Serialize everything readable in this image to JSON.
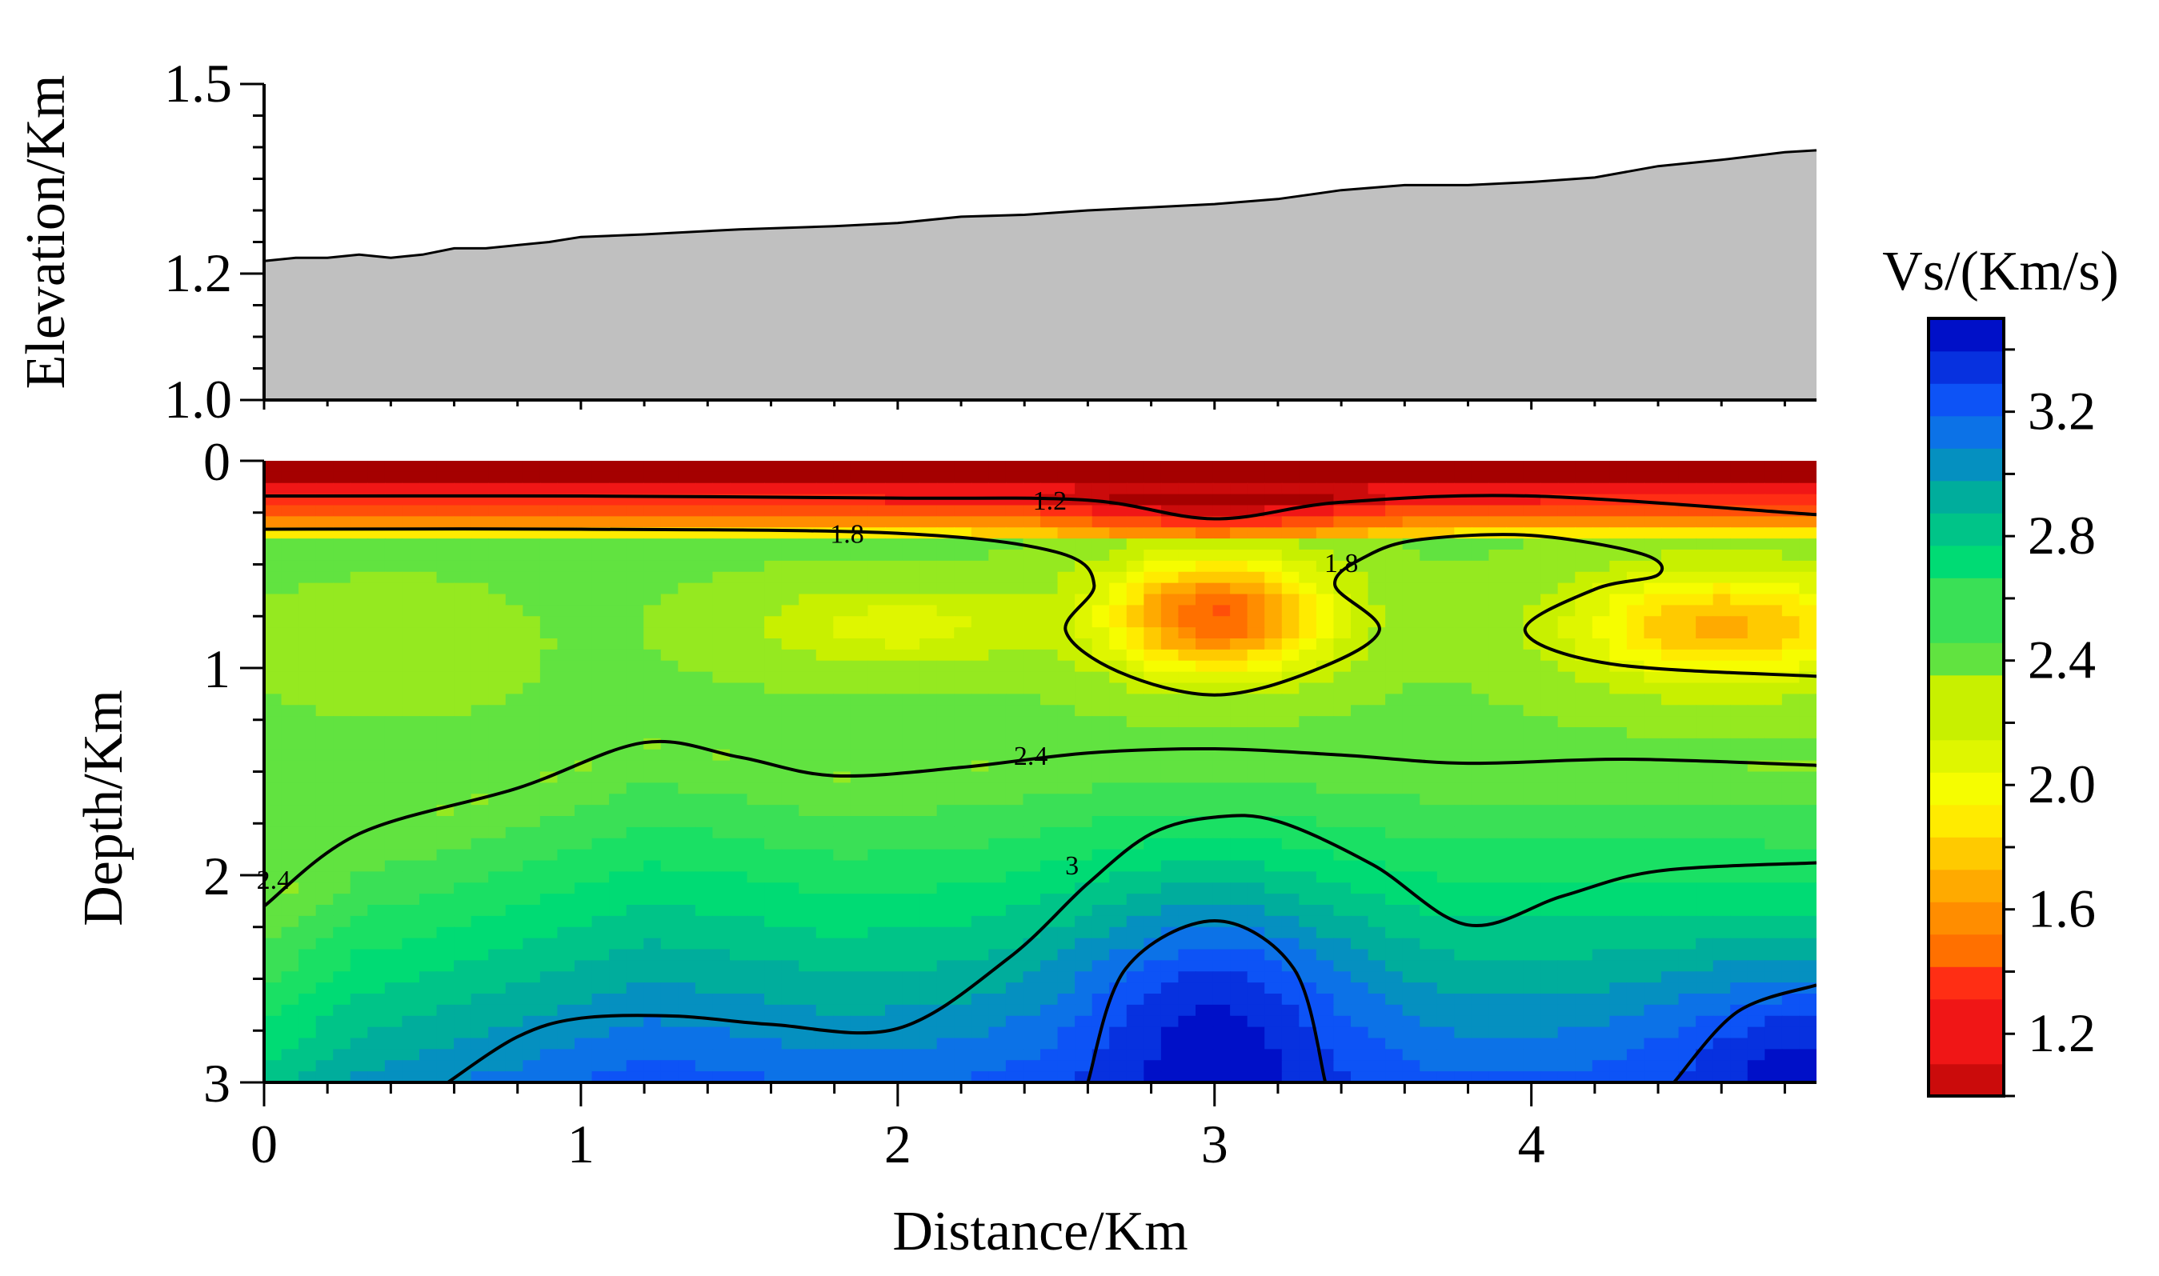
{
  "chart_data": [
    {
      "type": "area",
      "ylabel": "Elevation/Km",
      "ylim": [
        1.0,
        1.5
      ],
      "yticks": [
        "1.0",
        "1.2",
        "1.5"
      ],
      "xlim": [
        0,
        4.9
      ],
      "fill_color": "#c0c0c0",
      "x": [
        0,
        0.1,
        0.2,
        0.3,
        0.4,
        0.5,
        0.6,
        0.7,
        0.8,
        0.9,
        1.0,
        1.2,
        1.5,
        1.8,
        2.0,
        2.2,
        2.4,
        2.6,
        2.8,
        3.0,
        3.2,
        3.4,
        3.6,
        3.8,
        4.0,
        4.2,
        4.4,
        4.6,
        4.8,
        4.9
      ],
      "y": [
        1.22,
        1.225,
        1.225,
        1.23,
        1.225,
        1.23,
        1.24,
        1.24,
        1.245,
        1.25,
        1.258,
        1.262,
        1.27,
        1.275,
        1.28,
        1.29,
        1.293,
        1.3,
        1.305,
        1.31,
        1.318,
        1.332,
        1.34,
        1.34,
        1.345,
        1.352,
        1.37,
        1.38,
        1.392,
        1.395
      ]
    },
    {
      "type": "heatmap",
      "xlabel": "Distance/Km",
      "ylabel": "Depth/Km",
      "xlim": [
        0,
        4.9
      ],
      "ylim": [
        0,
        3
      ],
      "xticks": [
        "0",
        "1",
        "2",
        "3",
        "4"
      ],
      "yticks": [
        "0",
        "1",
        "2",
        "3"
      ],
      "colorbar": {
        "title": "Vs/(Km/s)",
        "range": [
          1.0,
          3.5
        ],
        "ticks": [
          "1.2",
          "1.6",
          "2.0",
          "2.4",
          "2.8",
          "3.2"
        ],
        "colors": [
          "#a50000",
          "#ff1a1a",
          "#ff6a00",
          "#ffb000",
          "#ffff00",
          "#c8f000",
          "#4de04d",
          "#00e070",
          "#00a8a0",
          "#1060ff",
          "#0010c8"
        ]
      },
      "contours": [
        {
          "level": "1.2",
          "points": [
            [
              0,
              0.17
            ],
            [
              1,
              0.17
            ],
            [
              2,
              0.18
            ],
            [
              2.6,
              0.19
            ],
            [
              3.0,
              0.28
            ],
            [
              3.4,
              0.2
            ],
            [
              4.0,
              0.17
            ],
            [
              4.9,
              0.26
            ]
          ]
        },
        {
          "level": "1.8",
          "points": [
            [
              0,
              0.33
            ],
            [
              1,
              0.33
            ],
            [
              2,
              0.35
            ],
            [
              2.5,
              0.44
            ],
            [
              2.62,
              0.6
            ],
            [
              2.53,
              0.82
            ],
            [
              2.7,
              1.02
            ],
            [
              3.0,
              1.13
            ],
            [
              3.3,
              1.02
            ],
            [
              3.52,
              0.82
            ],
            [
              3.38,
              0.6
            ],
            [
              3.48,
              0.46
            ],
            [
              3.65,
              0.38
            ],
            [
              4.0,
              0.36
            ],
            [
              4.35,
              0.45
            ],
            [
              4.4,
              0.55
            ],
            [
              4.2,
              0.62
            ],
            [
              3.98,
              0.82
            ],
            [
              4.25,
              0.98
            ],
            [
              4.9,
              1.04
            ]
          ]
        },
        {
          "level": "1.8",
          "points": [
            [
              0,
              0.33
            ]
          ]
        },
        {
          "level": "2.4",
          "points": [
            [
              0,
              2.15
            ],
            [
              0.3,
              1.8
            ],
            [
              0.8,
              1.58
            ],
            [
              1.2,
              1.36
            ],
            [
              1.5,
              1.43
            ],
            [
              1.8,
              1.52
            ],
            [
              2.2,
              1.48
            ],
            [
              2.6,
              1.41
            ],
            [
              3.0,
              1.39
            ],
            [
              3.4,
              1.42
            ],
            [
              3.8,
              1.46
            ],
            [
              4.3,
              1.44
            ],
            [
              4.9,
              1.47
            ]
          ]
        },
        {
          "level": "3",
          "points": [
            [
              0.58,
              3.0
            ],
            [
              0.8,
              2.78
            ],
            [
              1.0,
              2.69
            ],
            [
              1.3,
              2.68
            ],
            [
              1.6,
              2.72
            ],
            [
              2.0,
              2.74
            ],
            [
              2.35,
              2.4
            ],
            [
              2.6,
              2.04
            ],
            [
              2.8,
              1.8
            ],
            [
              3.0,
              1.72
            ],
            [
              3.2,
              1.74
            ],
            [
              3.5,
              1.95
            ],
            [
              3.8,
              2.24
            ],
            [
              4.1,
              2.1
            ],
            [
              4.4,
              1.98
            ],
            [
              4.9,
              1.94
            ]
          ]
        },
        {
          "level": "3.4",
          "points": [
            [
              2.6,
              3.0
            ],
            [
              2.72,
              2.45
            ],
            [
              3.0,
              2.22
            ],
            [
              3.25,
              2.45
            ],
            [
              3.35,
              3.0
            ]
          ]
        },
        {
          "level": "3.4",
          "points": [
            [
              4.45,
              3.0
            ],
            [
              4.65,
              2.66
            ],
            [
              4.9,
              2.53
            ]
          ]
        }
      ],
      "contour_labels": [
        {
          "text": "1.2",
          "x": 2.48,
          "y": 0.19
        },
        {
          "text": "1.8",
          "x": 1.84,
          "y": 0.35
        },
        {
          "text": "1.8",
          "x": 3.4,
          "y": 0.49
        },
        {
          "text": "2.4",
          "x": 2.42,
          "y": 1.42
        },
        {
          "text": "2.4",
          "x": 0.03,
          "y": 2.02
        },
        {
          "text": "3",
          "x": 2.55,
          "y": 1.95
        }
      ],
      "field": {
        "background": 2.42,
        "features": [
          {
            "kind": "surface-low",
            "value": 1.05,
            "depth": 0.12
          },
          {
            "kind": "low-velocity-zone",
            "x": 3.0,
            "y": 0.75,
            "rx": 0.45,
            "ry": 0.35,
            "value": 1.45
          },
          {
            "kind": "low-velocity-zone",
            "x": 4.6,
            "y": 0.8,
            "rx": 0.6,
            "ry": 0.35,
            "value": 1.75
          },
          {
            "kind": "low-velocity-zone",
            "x": 2.0,
            "y": 0.8,
            "rx": 0.6,
            "ry": 0.25,
            "value": 2.15
          },
          {
            "kind": "high-velocity-body",
            "x": 3.0,
            "y": 2.9,
            "rx": 0.55,
            "ry": 0.9,
            "value": 3.5
          },
          {
            "kind": "high-velocity-body",
            "x": 4.9,
            "y": 3.0,
            "rx": 0.6,
            "ry": 0.6,
            "value": 3.5
          }
        ]
      }
    }
  ]
}
